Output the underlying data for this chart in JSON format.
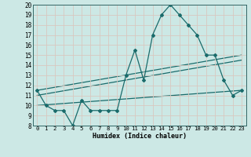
{
  "title": "",
  "xlabel": "Humidex (Indice chaleur)",
  "xlim": [
    -0.5,
    23.5
  ],
  "ylim": [
    8,
    20
  ],
  "xticks": [
    0,
    1,
    2,
    3,
    4,
    5,
    6,
    7,
    8,
    9,
    10,
    11,
    12,
    13,
    14,
    15,
    16,
    17,
    18,
    19,
    20,
    21,
    22,
    23
  ],
  "yticks": [
    8,
    9,
    10,
    11,
    12,
    13,
    14,
    15,
    16,
    17,
    18,
    19,
    20
  ],
  "bg_color": "#cce8e5",
  "line_color": "#1a6b6b",
  "grid_color": "#b0d0cc",
  "line1_x": [
    0,
    1,
    2,
    3,
    4,
    5,
    6,
    7,
    8,
    9,
    10,
    11,
    12,
    13,
    14,
    15,
    16,
    17,
    18,
    19,
    20,
    21,
    22,
    23
  ],
  "line1_y": [
    11.5,
    10.0,
    9.5,
    9.5,
    8.0,
    10.5,
    9.5,
    9.5,
    9.5,
    9.5,
    13.0,
    15.5,
    12.5,
    17.0,
    19.0,
    20.0,
    19.0,
    18.0,
    17.0,
    15.0,
    15.0,
    12.5,
    11.0,
    11.5
  ],
  "line2_x": [
    0,
    23
  ],
  "line2_y": [
    11.5,
    15.0
  ],
  "line3_x": [
    0,
    23
  ],
  "line3_y": [
    11.0,
    14.5
  ],
  "line4_x": [
    0,
    23
  ],
  "line4_y": [
    10.0,
    11.5
  ]
}
